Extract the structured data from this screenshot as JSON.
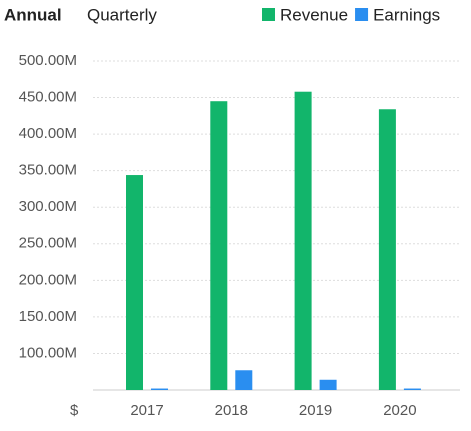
{
  "chart_data": {
    "type": "bar",
    "tabs": [
      "Annual",
      "Quarterly"
    ],
    "categories": [
      "2017",
      "2018",
      "2019",
      "2020"
    ],
    "series": [
      {
        "name": "Revenue",
        "color": "#12b56b",
        "values": [
          344,
          445,
          458,
          434
        ]
      },
      {
        "name": "Earnings",
        "color": "#2a8ef0",
        "values": [
          52,
          77,
          64,
          52
        ]
      }
    ],
    "ylim": [
      50,
      500
    ],
    "yticks": [
      {
        "value": 100,
        "label": "100.00M"
      },
      {
        "value": 150,
        "label": "150.00M"
      },
      {
        "value": 200,
        "label": "200.00M"
      },
      {
        "value": 250,
        "label": "250.00M"
      },
      {
        "value": 300,
        "label": "300.00M"
      },
      {
        "value": 350,
        "label": "350.00M"
      },
      {
        "value": 400,
        "label": "400.00M"
      },
      {
        "value": 450,
        "label": "450.00M"
      },
      {
        "value": 500,
        "label": "500.00M"
      }
    ],
    "currency_label": "$",
    "grid": true
  }
}
